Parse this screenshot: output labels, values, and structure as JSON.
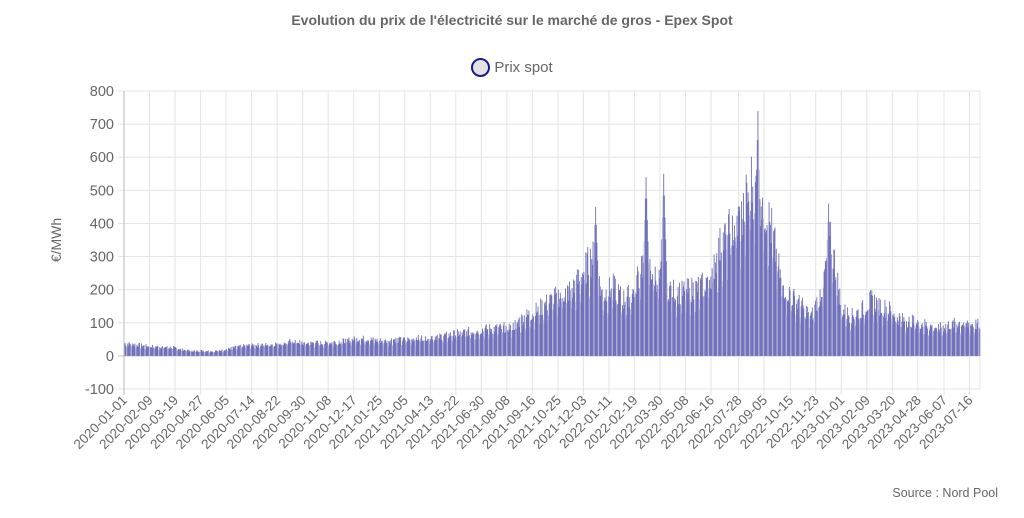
{
  "chart_data": {
    "type": "bar",
    "title": "Evolution du prix de l'électricité sur le marché de gros - Epex Spot",
    "legend": [
      {
        "label": "Prix spot",
        "position": "top-center"
      }
    ],
    "xlabel": "",
    "ylabel": "€/MWh",
    "ylim": [
      -100,
      800
    ],
    "yticks": [
      -100,
      0,
      100,
      200,
      300,
      400,
      500,
      600,
      700,
      800
    ],
    "grid": true,
    "x_start": "2020-01-01",
    "x_end": "2023-07-31",
    "x_tick_labels": [
      "2020-01-01",
      "2020-02-09",
      "2020-03-19",
      "2020-04-27",
      "2020-06-05",
      "2020-07-14",
      "2020-08-22",
      "2020-09-30",
      "2020-11-08",
      "2020-12-17",
      "2021-01-25",
      "2021-03-05",
      "2021-04-13",
      "2021-05-22",
      "2021-06-30",
      "2021-08-08",
      "2021-09-16",
      "2021-10-25",
      "2021-12-03",
      "2022-01-11",
      "2022-02-19",
      "2022-03-30",
      "2022-05-08",
      "2022-06-16",
      "2022-07-28",
      "2022-09-05",
      "2022-10-15",
      "2022-11-23",
      "2023-01-01",
      "2023-02-09",
      "2023-03-20",
      "2023-04-28",
      "2023-06-07",
      "2023-07-16"
    ],
    "series": [
      {
        "name": "Prix spot",
        "colors": {
          "weekday": "#7070bb",
          "weekend": "#b0b0d8"
        },
        "semi_monthly_dates": [
          "2020-01-01",
          "2020-01-16",
          "2020-02-01",
          "2020-02-16",
          "2020-03-01",
          "2020-03-16",
          "2020-04-01",
          "2020-04-16",
          "2020-05-01",
          "2020-05-16",
          "2020-06-01",
          "2020-06-16",
          "2020-07-01",
          "2020-07-16",
          "2020-08-01",
          "2020-08-16",
          "2020-09-01",
          "2020-09-16",
          "2020-10-01",
          "2020-10-16",
          "2020-11-01",
          "2020-11-16",
          "2020-12-01",
          "2020-12-16",
          "2021-01-01",
          "2021-01-16",
          "2021-02-01",
          "2021-02-16",
          "2021-03-01",
          "2021-03-16",
          "2021-04-01",
          "2021-04-16",
          "2021-05-01",
          "2021-05-16",
          "2021-06-01",
          "2021-06-16",
          "2021-07-01",
          "2021-07-16",
          "2021-08-01",
          "2021-08-16",
          "2021-09-01",
          "2021-09-16",
          "2021-10-01",
          "2021-10-16",
          "2021-11-01",
          "2021-11-16",
          "2021-12-01",
          "2021-12-16",
          "2022-01-01",
          "2022-01-16",
          "2022-02-01",
          "2022-02-16",
          "2022-03-01",
          "2022-03-16",
          "2022-04-01",
          "2022-04-16",
          "2022-05-01",
          "2022-05-16",
          "2022-06-01",
          "2022-06-16",
          "2022-07-01",
          "2022-07-16",
          "2022-08-01",
          "2022-08-16",
          "2022-09-01",
          "2022-09-16",
          "2022-10-01",
          "2022-10-16",
          "2022-11-01",
          "2022-11-16",
          "2022-12-01",
          "2022-12-16",
          "2023-01-01",
          "2023-01-16",
          "2023-02-01",
          "2023-02-16",
          "2023-03-01",
          "2023-03-16",
          "2023-04-01",
          "2023-04-16",
          "2023-05-01",
          "2023-05-16",
          "2023-06-01",
          "2023-06-16",
          "2023-07-01",
          "2023-07-16"
        ],
        "values": [
          38,
          35,
          30,
          28,
          27,
          25,
          18,
          15,
          16,
          14,
          18,
          25,
          30,
          32,
          34,
          36,
          40,
          45,
          38,
          40,
          38,
          42,
          45,
          50,
          52,
          48,
          45,
          50,
          48,
          52,
          55,
          58,
          60,
          65,
          70,
          75,
          80,
          82,
          85,
          88,
          115,
          130,
          150,
          170,
          190,
          200,
          250,
          300,
          180,
          210,
          170,
          190,
          280,
          260,
          220,
          200,
          190,
          200,
          210,
          250,
          340,
          380,
          420,
          520,
          480,
          380,
          220,
          180,
          150,
          120,
          200,
          350,
          140,
          120,
          140,
          170,
          150,
          140,
          110,
          105,
          100,
          90,
          85,
          95,
          100,
          95
        ]
      }
    ],
    "notable_peaks": [
      {
        "date": "2021-12-21",
        "value": 450
      },
      {
        "date": "2022-03-08",
        "value": 540
      },
      {
        "date": "2022-04-04",
        "value": 550
      },
      {
        "date": "2022-08-26",
        "value": 740
      },
      {
        "date": "2022-12-12",
        "value": 460
      }
    ]
  },
  "source": "Source : Nord Pool"
}
